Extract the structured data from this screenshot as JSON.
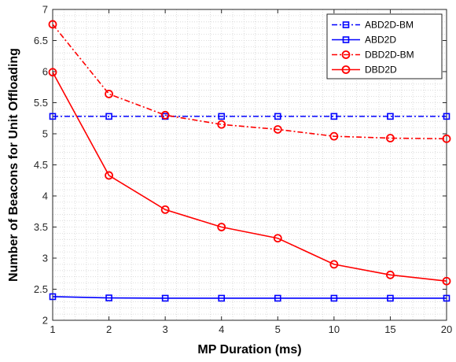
{
  "chart_data": {
    "type": "line",
    "title": "",
    "xlabel": "MP Duration (ms)",
    "ylabel": "Number of Beacons for Unit Offloading",
    "categories": [
      "1",
      "2",
      "3",
      "4",
      "5",
      "10",
      "15",
      "20"
    ],
    "ylim": [
      2,
      7
    ],
    "yticks": [
      "2",
      "2.5",
      "3",
      "3.5",
      "4",
      "4.5",
      "5",
      "5.5",
      "6",
      "6.5",
      "7"
    ],
    "grid": "minor dotted",
    "legend_position": "top-right",
    "series": [
      {
        "name": "ABD2D-BM",
        "color": "#0000ff",
        "line": "dashdot",
        "marker": "square",
        "values": [
          5.28,
          5.28,
          5.28,
          5.28,
          5.28,
          5.28,
          5.28,
          5.28
        ]
      },
      {
        "name": "ABD2D",
        "color": "#0000ff",
        "line": "solid",
        "marker": "square",
        "values": [
          2.38,
          2.36,
          2.355,
          2.355,
          2.355,
          2.355,
          2.355,
          2.355
        ]
      },
      {
        "name": "DBD2D-BM",
        "color": "#ff0000",
        "line": "dashdot",
        "marker": "circle",
        "values": [
          6.76,
          5.64,
          5.3,
          5.15,
          5.07,
          4.96,
          4.93,
          4.92
        ]
      },
      {
        "name": "DBD2D",
        "color": "#ff0000",
        "line": "solid",
        "marker": "circle",
        "values": [
          5.99,
          4.33,
          3.78,
          3.5,
          3.32,
          2.9,
          2.73,
          2.63
        ]
      }
    ]
  }
}
